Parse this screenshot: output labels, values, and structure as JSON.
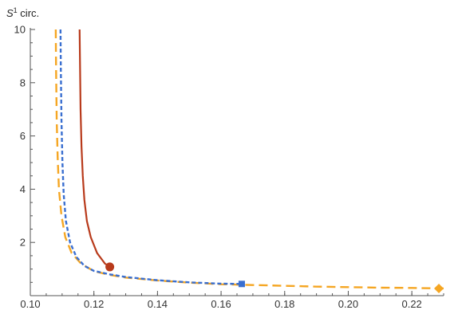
{
  "chart_data": {
    "type": "line",
    "title": "",
    "ylabel_base": "S",
    "ylabel_sup": "1",
    "ylabel_rest": " circ.",
    "xlabel": "",
    "xlim": [
      0.1,
      0.23
    ],
    "ylim": [
      0,
      10
    ],
    "x_ticks": [
      "0.10",
      "0.12",
      "0.14",
      "0.16",
      "0.18",
      "0.20",
      "0.22"
    ],
    "y_ticks": [
      "2",
      "4",
      "6",
      "8",
      "10"
    ],
    "colors": {
      "red": "#B83A1B",
      "blue": "#3A6FD0",
      "orange": "#F5A623"
    },
    "series": [
      {
        "color": "red",
        "style": "solid",
        "x": [
          0.1155,
          0.1156,
          0.1158,
          0.1161,
          0.1165,
          0.117,
          0.1178,
          0.119,
          0.121,
          0.1235,
          0.125
        ],
        "y": [
          10,
          9.0,
          7.0,
          5.6,
          4.5,
          3.6,
          2.8,
          2.2,
          1.6,
          1.2,
          1.1
        ]
      },
      {
        "color": "orange",
        "style": "long-dash",
        "x": [
          0.108,
          0.1081,
          0.1083,
          0.1086,
          0.109,
          0.1098,
          0.111,
          0.113,
          0.116,
          0.12,
          0.125,
          0.13,
          0.14,
          0.15,
          0.16,
          0.17,
          0.18,
          0.19,
          0.2,
          0.21,
          0.22,
          0.23
        ],
        "y": [
          10,
          8.5,
          6.6,
          5.2,
          4.0,
          3.0,
          2.2,
          1.6,
          1.2,
          0.92,
          0.78,
          0.68,
          0.57,
          0.49,
          0.43,
          0.4,
          0.37,
          0.34,
          0.32,
          0.3,
          0.29,
          0.27
        ]
      },
      {
        "color": "blue",
        "style": "short-dash",
        "x": [
          0.1095,
          0.1096,
          0.1098,
          0.1101,
          0.1105,
          0.1112,
          0.1125,
          0.1145,
          0.117,
          0.12,
          0.125,
          0.13,
          0.14,
          0.15,
          0.16,
          0.1665
        ],
        "y": [
          10,
          8.5,
          6.6,
          5.0,
          3.8,
          2.8,
          2.0,
          1.45,
          1.12,
          0.93,
          0.8,
          0.7,
          0.58,
          0.5,
          0.45,
          0.44
        ]
      }
    ],
    "markers": [
      {
        "shape": "circle",
        "color": "red",
        "x": 0.125,
        "y": 1.08
      },
      {
        "shape": "square",
        "color": "blue",
        "x": 0.1665,
        "y": 0.44
      },
      {
        "shape": "diamond",
        "color": "orange",
        "x": 0.2285,
        "y": 0.27
      }
    ]
  }
}
